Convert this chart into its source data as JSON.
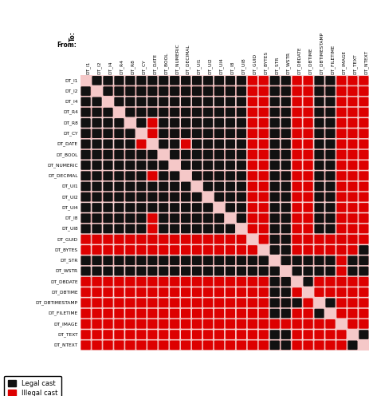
{
  "types": [
    "DT_I1",
    "DT_I2",
    "DT_I4",
    "DT_R4",
    "DT_R8",
    "DT_CY",
    "DT_DATE",
    "DT_BOOL",
    "DT_NUMERIC",
    "DT_DECIMAL",
    "DT_UI1",
    "DT_UI2",
    "DT_UI4",
    "DT_I8",
    "DT_UI8",
    "DT_GUID",
    "DT_BYTES",
    "DT_STR",
    "DT_WSTR",
    "DT_DBDATE",
    "DT_DBTIME",
    "DT_DBTIMESTAMP",
    "DT_FILETIME",
    "DT_IMAGE",
    "DT_TEXT",
    "DT_NTEXT"
  ],
  "matrix": [
    [
      0,
      1,
      1,
      1,
      1,
      1,
      1,
      1,
      1,
      1,
      1,
      1,
      1,
      1,
      1,
      2,
      2,
      1,
      1,
      2,
      2,
      1,
      1,
      2,
      2,
      2
    ],
    [
      1,
      0,
      1,
      1,
      1,
      1,
      1,
      1,
      1,
      1,
      1,
      1,
      1,
      1,
      1,
      2,
      2,
      1,
      1,
      2,
      2,
      1,
      1,
      2,
      2,
      2
    ],
    [
      1,
      1,
      0,
      1,
      1,
      1,
      1,
      1,
      1,
      1,
      1,
      1,
      1,
      1,
      1,
      2,
      2,
      1,
      1,
      2,
      2,
      1,
      1,
      2,
      2,
      2
    ],
    [
      1,
      1,
      1,
      0,
      1,
      1,
      1,
      1,
      1,
      1,
      1,
      1,
      1,
      1,
      1,
      2,
      2,
      1,
      1,
      2,
      2,
      1,
      1,
      2,
      2,
      2
    ],
    [
      1,
      1,
      1,
      1,
      0,
      1,
      2,
      1,
      1,
      1,
      1,
      1,
      1,
      1,
      1,
      2,
      2,
      1,
      1,
      2,
      2,
      1,
      1,
      2,
      2,
      2
    ],
    [
      1,
      1,
      1,
      1,
      1,
      0,
      2,
      1,
      1,
      1,
      1,
      1,
      1,
      1,
      1,
      2,
      2,
      1,
      1,
      2,
      2,
      1,
      1,
      2,
      2,
      2
    ],
    [
      1,
      1,
      1,
      1,
      1,
      2,
      0,
      1,
      1,
      2,
      1,
      1,
      1,
      1,
      1,
      2,
      2,
      1,
      1,
      2,
      2,
      1,
      1,
      2,
      2,
      2
    ],
    [
      1,
      1,
      1,
      1,
      1,
      1,
      1,
      0,
      1,
      1,
      1,
      1,
      1,
      1,
      1,
      2,
      2,
      1,
      1,
      2,
      2,
      1,
      1,
      2,
      2,
      2
    ],
    [
      1,
      1,
      1,
      1,
      1,
      1,
      1,
      1,
      0,
      1,
      1,
      1,
      1,
      1,
      1,
      2,
      2,
      1,
      1,
      2,
      2,
      1,
      1,
      2,
      2,
      2
    ],
    [
      1,
      1,
      1,
      1,
      1,
      1,
      2,
      1,
      1,
      0,
      1,
      1,
      1,
      1,
      1,
      2,
      2,
      1,
      1,
      2,
      2,
      1,
      1,
      2,
      2,
      2
    ],
    [
      1,
      1,
      1,
      1,
      1,
      1,
      1,
      1,
      1,
      1,
      0,
      1,
      1,
      1,
      1,
      2,
      2,
      1,
      1,
      2,
      2,
      1,
      1,
      2,
      2,
      2
    ],
    [
      1,
      1,
      1,
      1,
      1,
      1,
      1,
      1,
      1,
      1,
      1,
      0,
      1,
      1,
      1,
      2,
      2,
      1,
      1,
      2,
      2,
      1,
      1,
      2,
      2,
      2
    ],
    [
      1,
      1,
      1,
      1,
      1,
      1,
      1,
      1,
      1,
      1,
      1,
      1,
      0,
      1,
      1,
      2,
      2,
      1,
      1,
      2,
      2,
      1,
      1,
      2,
      2,
      2
    ],
    [
      1,
      1,
      1,
      1,
      1,
      1,
      2,
      1,
      1,
      1,
      1,
      1,
      1,
      0,
      1,
      2,
      2,
      1,
      1,
      2,
      2,
      1,
      1,
      2,
      2,
      2
    ],
    [
      1,
      1,
      1,
      1,
      1,
      1,
      2,
      1,
      1,
      1,
      1,
      1,
      1,
      1,
      0,
      2,
      2,
      1,
      1,
      2,
      2,
      1,
      1,
      2,
      2,
      2
    ],
    [
      2,
      2,
      2,
      2,
      2,
      2,
      2,
      2,
      2,
      2,
      2,
      2,
      2,
      2,
      2,
      0,
      2,
      1,
      1,
      2,
      2,
      2,
      2,
      2,
      2,
      2
    ],
    [
      2,
      2,
      2,
      2,
      2,
      2,
      2,
      2,
      2,
      2,
      2,
      2,
      2,
      2,
      2,
      2,
      0,
      1,
      1,
      2,
      2,
      2,
      2,
      2,
      2,
      1
    ],
    [
      1,
      1,
      1,
      1,
      1,
      1,
      1,
      1,
      1,
      1,
      1,
      1,
      1,
      1,
      1,
      1,
      1,
      0,
      1,
      1,
      1,
      1,
      1,
      2,
      1,
      1
    ],
    [
      1,
      1,
      1,
      1,
      1,
      1,
      1,
      1,
      1,
      1,
      1,
      1,
      1,
      1,
      1,
      1,
      1,
      1,
      0,
      1,
      1,
      1,
      1,
      2,
      1,
      1
    ],
    [
      2,
      2,
      2,
      2,
      2,
      2,
      2,
      2,
      2,
      2,
      2,
      2,
      2,
      2,
      2,
      2,
      2,
      1,
      1,
      0,
      1,
      2,
      2,
      2,
      2,
      2
    ],
    [
      2,
      2,
      2,
      2,
      2,
      2,
      2,
      2,
      2,
      2,
      2,
      2,
      2,
      2,
      2,
      2,
      2,
      1,
      1,
      2,
      0,
      2,
      2,
      2,
      2,
      2
    ],
    [
      2,
      2,
      2,
      2,
      2,
      2,
      2,
      2,
      2,
      2,
      2,
      2,
      2,
      2,
      2,
      2,
      2,
      1,
      1,
      1,
      2,
      0,
      1,
      2,
      2,
      2
    ],
    [
      2,
      2,
      2,
      2,
      2,
      2,
      2,
      2,
      2,
      2,
      2,
      2,
      2,
      2,
      2,
      2,
      2,
      1,
      1,
      2,
      2,
      1,
      0,
      2,
      2,
      2
    ],
    [
      2,
      2,
      2,
      2,
      2,
      2,
      2,
      2,
      2,
      2,
      2,
      2,
      2,
      2,
      2,
      2,
      2,
      2,
      2,
      2,
      2,
      2,
      2,
      0,
      2,
      2
    ],
    [
      2,
      2,
      2,
      2,
      2,
      2,
      2,
      2,
      2,
      2,
      2,
      2,
      2,
      2,
      2,
      2,
      2,
      1,
      1,
      2,
      2,
      2,
      2,
      2,
      0,
      1
    ],
    [
      2,
      2,
      2,
      2,
      2,
      2,
      2,
      2,
      2,
      2,
      2,
      2,
      2,
      2,
      2,
      2,
      2,
      1,
      1,
      2,
      2,
      2,
      2,
      2,
      1,
      0
    ]
  ],
  "legal_color": "#111111",
  "illegal_color": "#dd0000",
  "empty_color": "#f5c8c8",
  "row_bg_odd": "#f0b8b8",
  "row_bg_even": "#fad4d4",
  "header_bg": "#e8a8a8",
  "figure_bg": "#ffffff"
}
